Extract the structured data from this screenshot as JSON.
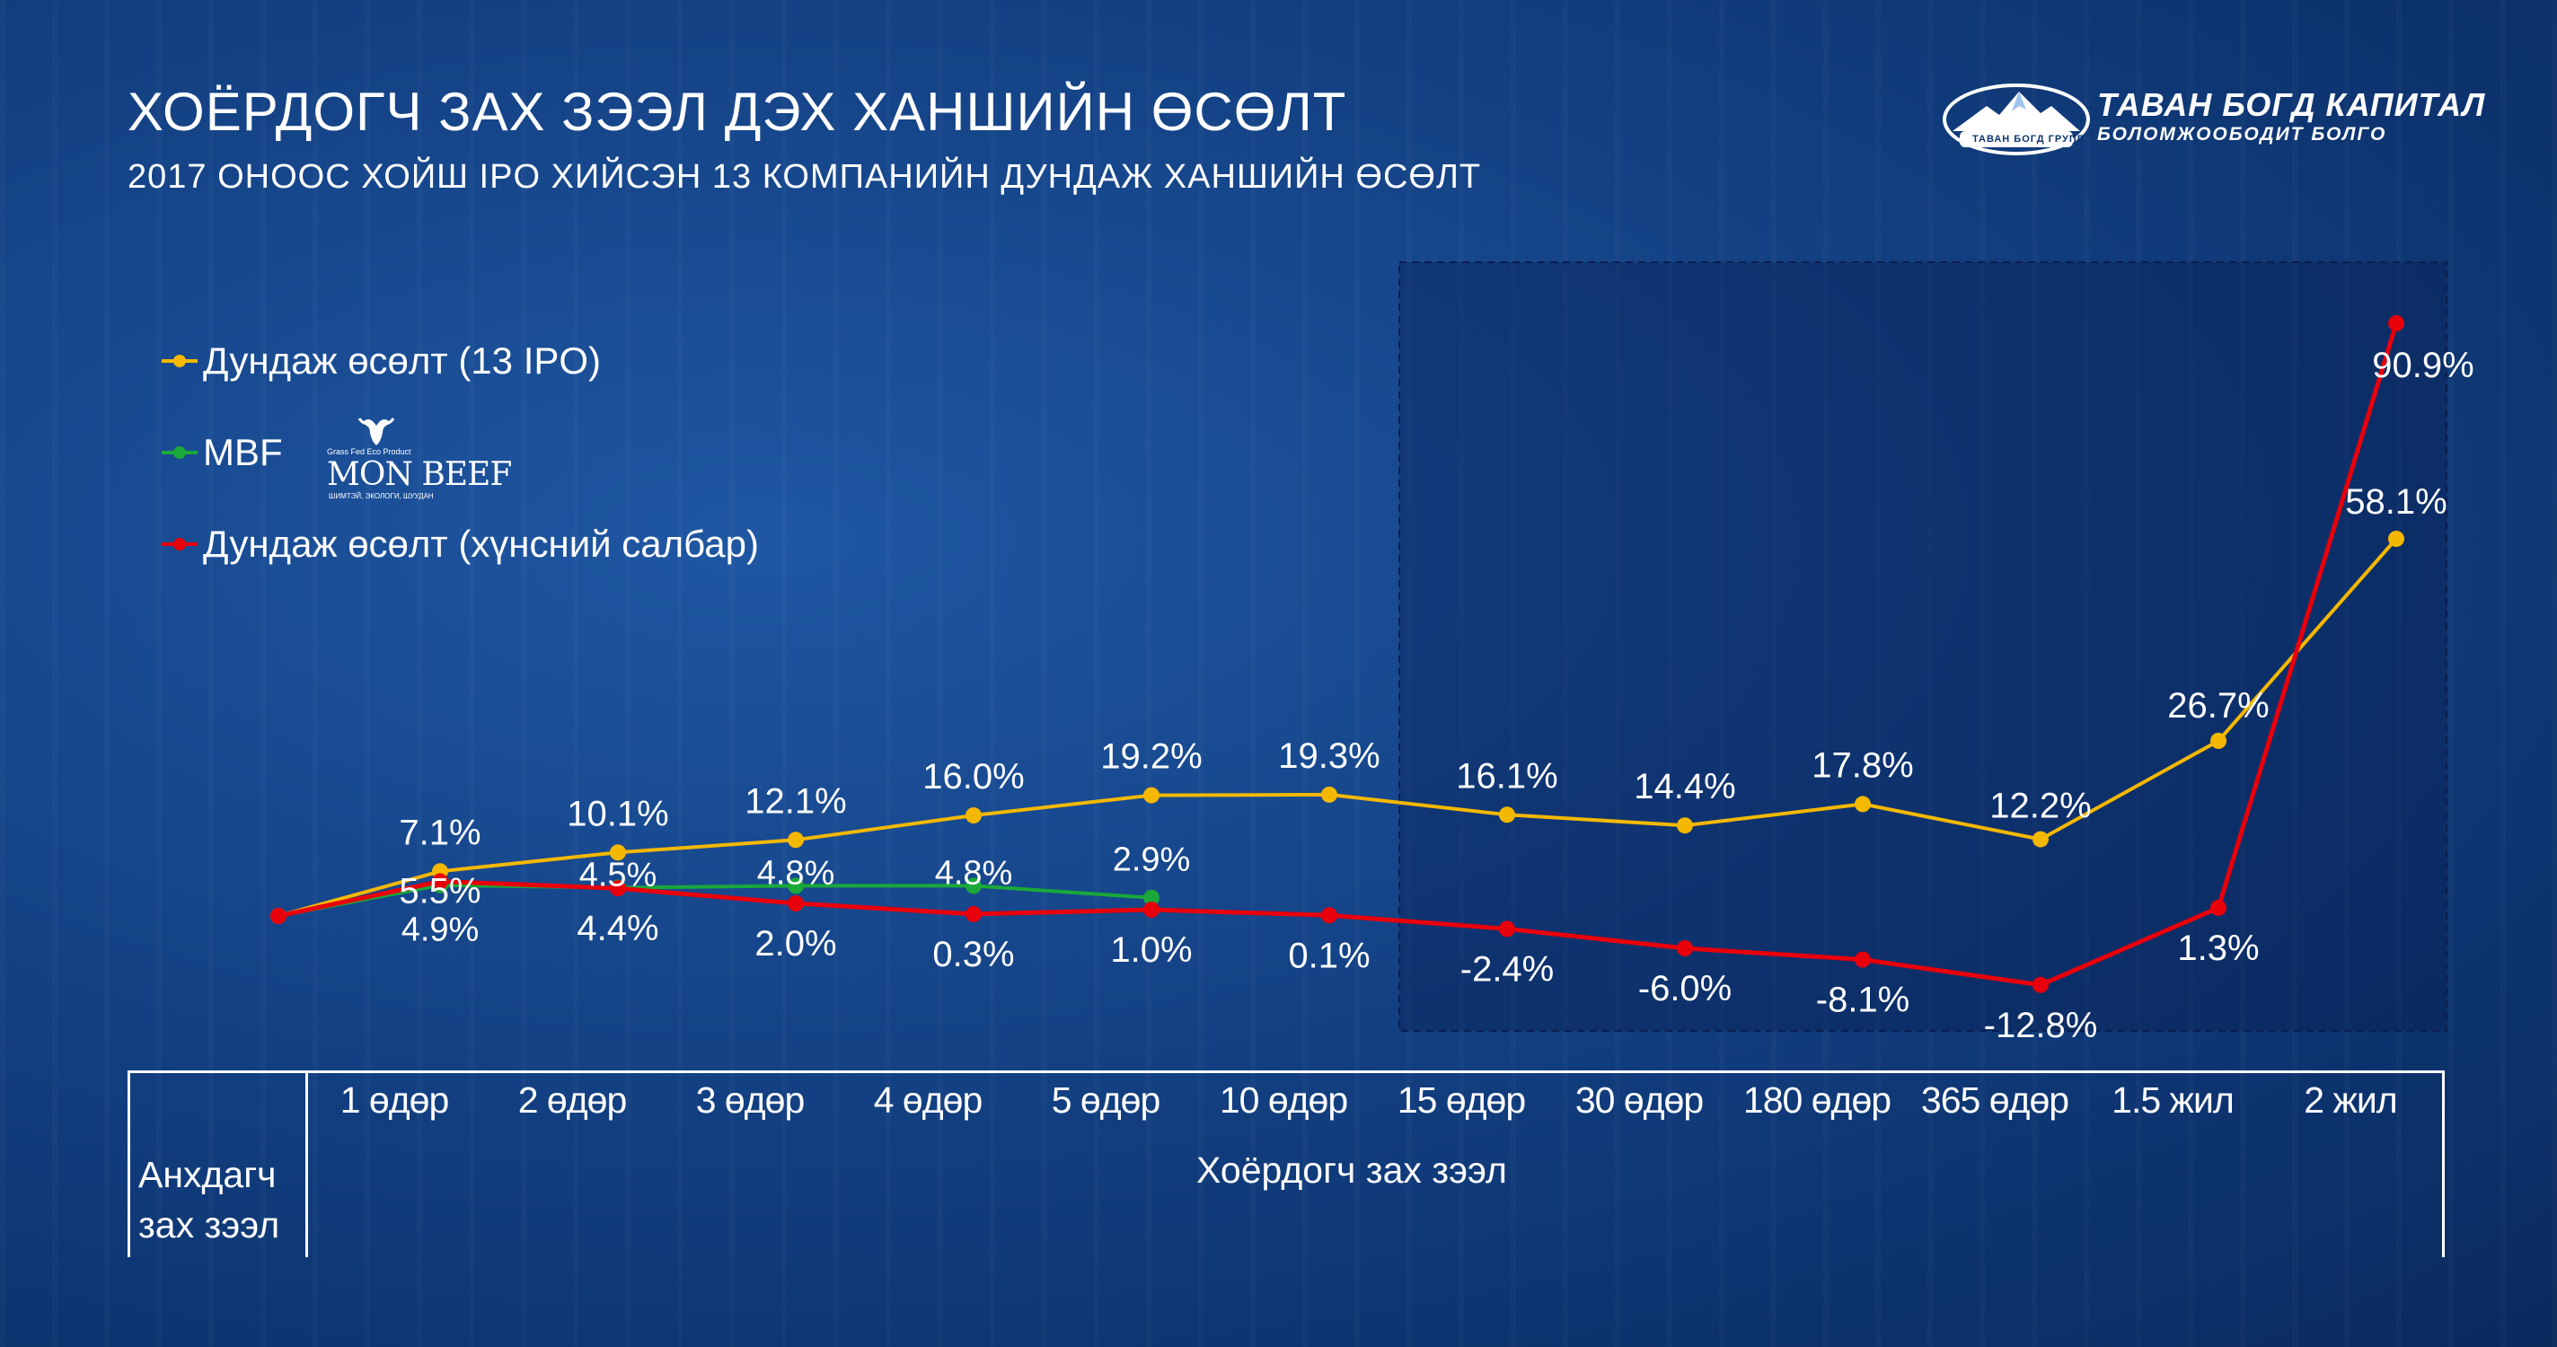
{
  "header": {
    "title": "ХОЁРДОГЧ ЗАХ ЗЭЭЛ ДЭХ ХАНШИЙН ӨСӨЛТ",
    "subtitle": "2017 ОНООС ХОЙШ IPO ХИЙСЭН 13 КОМПАНИЙН ДУНДАЖ ХАНШИЙН ӨСӨЛТ"
  },
  "logo": {
    "name": "ТАВАН БОГД КАПИТАЛ",
    "tagline": "БОЛОМЖООБОДИТ БОЛГО",
    "small_text": "ТАВАН БОГД ГРУПП"
  },
  "monbeef_logo": {
    "top_text": "Grass Fed   Eco Product",
    "name": "MON BEEF",
    "sub_text": "ШИМТЭЙ, ЭКОЛОГИ, ШУУДАН"
  },
  "colors": {
    "average": "#f5b800",
    "mbf": "#1aa83a",
    "food": "#e8000b",
    "text": "#ffffff"
  },
  "chart_data": {
    "type": "line",
    "title": "ХОЁРДОГЧ ЗАХ ЗЭЭЛ ДЭХ ХАНШИЙН ӨСӨЛТ",
    "subtitle": "2017 ОНООС ХОЙШ IPO ХИЙСЭН 13 КОМПАНИЙН ДУНДАЖ ХАНШИЙН ӨСӨЛТ",
    "categories": [
      "Анхдагч зах зээл",
      "1 өдөр",
      "2 өдөр",
      "3 өдөр",
      "4 өдөр",
      "5 өдөр",
      "10 өдөр",
      "15 өдөр",
      "30 өдөр",
      "180 өдөр",
      "365 өдөр",
      "1.5 жил",
      "2 жил"
    ],
    "category_groups": [
      {
        "label": "Анхдагч зах зээл",
        "categories": [
          "Анхдагч зах зээл"
        ]
      },
      {
        "label": "Хоёрдогч зах зээл",
        "categories": [
          "1 өдөр",
          "2 өдөр",
          "3 өдөр",
          "4 өдөр",
          "5 өдөр",
          "10 өдөр",
          "15 өдөр",
          "30 өдөр",
          "180 өдөр",
          "365 өдөр",
          "1.5 жил",
          "2 жил"
        ]
      }
    ],
    "period_labels": [
      "1 өдөр",
      "2 өдөр",
      "3 өдөр",
      "4 өдөр",
      "5 өдөр",
      "10 өдөр",
      "15 өдөр",
      "30 өдөр",
      "180 өдөр",
      "365 өдөр",
      "1.5 жил",
      "2 жил"
    ],
    "primary_label": [
      "Анхдагч",
      "зах зээл"
    ],
    "secondary_label": "Хоёрдогч зах зээл",
    "series": [
      {
        "key": "average",
        "name": "Дундаж өсөлт (13 IPO)",
        "values": [
          0,
          7.1,
          10.1,
          12.1,
          16.0,
          19.2,
          19.3,
          16.1,
          14.4,
          17.8,
          12.2,
          26.7,
          58.1
        ],
        "labels": [
          null,
          "7.1%",
          "10.1%",
          "12.1%",
          "16.0%",
          "19.2%",
          "19.3%",
          "16.1%",
          "14.4%",
          "17.8%",
          "12.2%",
          "26.7%",
          "58.1%"
        ]
      },
      {
        "key": "mbf",
        "name": "MBF",
        "values": [
          0,
          4.9,
          4.5,
          4.8,
          4.8,
          2.9,
          null,
          null,
          null,
          null,
          null,
          null,
          null
        ],
        "labels": [
          null,
          "4.9%",
          "4.5%",
          "4.8%",
          "4.8%",
          "2.9%",
          null,
          null,
          null,
          null,
          null,
          null,
          null
        ]
      },
      {
        "key": "food",
        "name": "Дундаж өсөлт (хүнсний салбар)",
        "values": [
          0,
          5.5,
          4.4,
          2.0,
          0.3,
          1.0,
          0.1,
          -2.4,
          -6.0,
          -8.1,
          -12.8,
          1.3,
          90.9
        ],
        "labels": [
          null,
          "5.5%",
          "4.4%",
          "2.0%",
          "0.3%",
          "1.0%",
          "0.1%",
          "-2.4%",
          "-6.0%",
          "-8.1%",
          "-12.8%",
          "1.3%",
          "90.9%"
        ]
      }
    ],
    "legend_position": "top-left",
    "grid": false,
    "highlight_region": {
      "from": "15 өдөр",
      "to": "2 жил"
    }
  }
}
